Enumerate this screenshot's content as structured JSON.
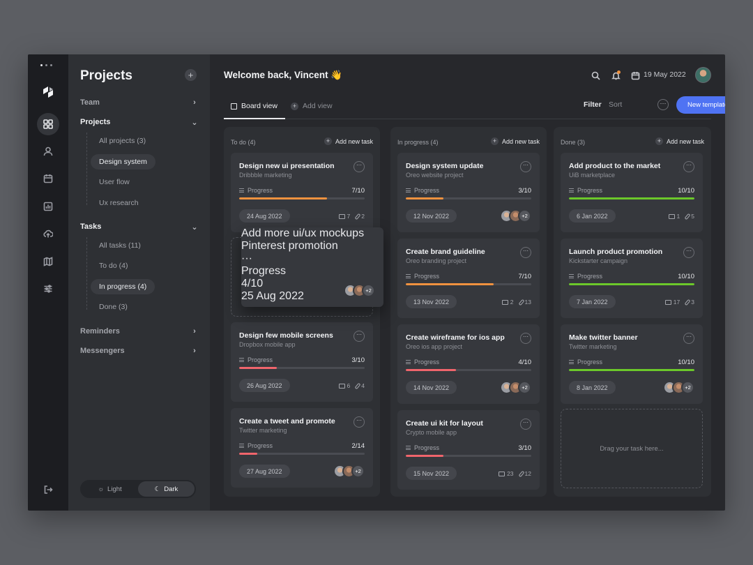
{
  "header": {
    "welcome": "Welcome back, Vincent 👋",
    "date": "19 May 2022"
  },
  "toolbar": {
    "tabs": [
      {
        "label": "Board view"
      },
      {
        "label": "Add view"
      }
    ],
    "filter_label": "Filter",
    "sort_label": "Sort",
    "more_label": "···",
    "new_template_label": "New template"
  },
  "sidebar": {
    "title": "Projects",
    "add": "+",
    "sections": [
      {
        "label": "Team"
      },
      {
        "label": "Projects",
        "items": [
          "All projects (3)",
          "Design system",
          "User flow",
          "Ux research"
        ]
      },
      {
        "label": "Tasks",
        "items": [
          "All tasks (11)",
          "To do (4)",
          "In progress (4)",
          "Done (3)"
        ]
      },
      {
        "label": "Reminders"
      },
      {
        "label": "Messengers"
      }
    ],
    "theme": {
      "light": "Light",
      "dark": "Dark",
      "selected": "dark"
    }
  },
  "colors": {
    "accent": "#4f73f3",
    "progress_orange": "#f0923f",
    "progress_red": "#f0656c",
    "progress_green": "#6cc82a"
  },
  "board": {
    "columns": [
      {
        "title": "To do (4)",
        "add_label": "Add new task",
        "cards": [
          {
            "title": "Design new ui presentation",
            "subtitle": "Dribbble marketing",
            "progress_label": "Progress",
            "progress_text": "7/10",
            "progress": 0.7,
            "color": "#f0923f",
            "date": "24 Aug 2022",
            "comments": "7",
            "attachments": "2"
          },
          {
            "title": "Design few mobile screens",
            "subtitle": "Dropbox mobile app",
            "progress_label": "Progress",
            "progress_text": "3/10",
            "progress": 0.3,
            "color": "#f0656c",
            "date": "26 Aug 2022",
            "comments": "6",
            "attachments": "4"
          },
          {
            "title": "Create a tweet and promote",
            "subtitle": "Twitter marketing",
            "progress_label": "Progress",
            "progress_text": "2/14",
            "progress": 0.143,
            "color": "#f0656c",
            "date": "27 Aug 2022",
            "more_people": "+2"
          }
        ]
      },
      {
        "title": "In progress (4)",
        "add_label": "Add new task",
        "cards": [
          {
            "title": "Design system update",
            "subtitle": "Oreo website project",
            "progress_label": "Progress",
            "progress_text": "3/10",
            "progress": 0.3,
            "color": "#f0923f",
            "date": "12 Nov 2022",
            "more_people": "+2"
          },
          {
            "title": "Create brand guideline",
            "subtitle": "Oreo branding project",
            "progress_label": "Progress",
            "progress_text": "7/10",
            "progress": 0.7,
            "color": "#f0923f",
            "date": "13 Nov 2022",
            "comments": "2",
            "attachments": "13"
          },
          {
            "title": "Create wireframe for ios app",
            "subtitle": "Oreo ios app project",
            "progress_label": "Progress",
            "progress_text": "4/10",
            "progress": 0.4,
            "color": "#f0656c",
            "date": "14 Nov 2022",
            "more_people": "+2"
          },
          {
            "title": "Create ui kit for layout",
            "subtitle": "Crypto mobile app",
            "progress_label": "Progress",
            "progress_text": "3/10",
            "progress": 0.3,
            "color": "#f0656c",
            "date": "15 Nov 2022",
            "comments": "23",
            "attachments": "12"
          }
        ]
      },
      {
        "title": "Done (3)",
        "add_label": "Add new task",
        "cards": [
          {
            "title": "Add product to the market",
            "subtitle": "UiB marketplace",
            "progress_label": "Progress",
            "progress_text": "10/10",
            "progress": 1.0,
            "color": "#6cc82a",
            "date": "6 Jan 2022",
            "comments": "1",
            "attachments": "5"
          },
          {
            "title": "Launch product promotion",
            "subtitle": "Kickstarter campaign",
            "progress_label": "Progress",
            "progress_text": "10/10",
            "progress": 1.0,
            "color": "#6cc82a",
            "date": "7 Jan 2022",
            "comments": "17",
            "attachments": "3"
          },
          {
            "title": "Make twitter banner",
            "subtitle": "Twitter marketing",
            "progress_label": "Progress",
            "progress_text": "10/10",
            "progress": 1.0,
            "color": "#6cc82a",
            "date": "8 Jan 2022",
            "more_people": "+2"
          }
        ],
        "drop_hint": "Drag your task here..."
      }
    ],
    "dragging_card": {
      "title": "Add more ui/ux mockups",
      "subtitle": "Pinterest promotion",
      "progress_label": "Progress",
      "progress_text": "4/10",
      "progress": 0.4,
      "color": "#f0923f",
      "date": "25 Aug 2022",
      "more_people": "+2"
    }
  }
}
